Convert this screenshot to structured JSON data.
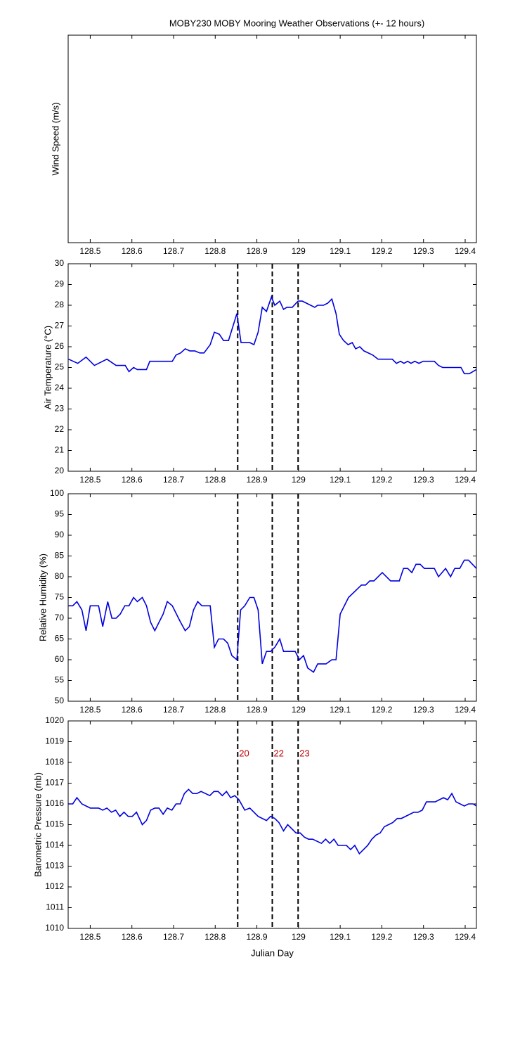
{
  "chart_data": [
    {
      "type": "line",
      "title": "MOBY230 MOBY Mooring Weather Observations (+- 12 hours)",
      "ylabel": "Wind Speed (m/s)",
      "xlim": [
        128.447,
        129.427
      ],
      "xticks": [
        128.5,
        128.6,
        128.7,
        128.8,
        128.9,
        129,
        129.1,
        129.2,
        129.3,
        129.4
      ]
    },
    {
      "type": "line",
      "ylabel": "Air Temperature (°C)",
      "color": "#0000e0",
      "xlim": [
        128.447,
        129.427
      ],
      "xticks": [
        128.5,
        128.6,
        128.7,
        128.8,
        128.9,
        129,
        129.1,
        129.2,
        129.3,
        129.4
      ],
      "ylim": [
        20,
        30
      ],
      "yticks": [
        20,
        21,
        22,
        23,
        24,
        25,
        26,
        27,
        28,
        29,
        30
      ],
      "vlines": [
        128.854,
        128.937,
        128.999
      ],
      "x": [
        128.448,
        128.47,
        128.49,
        128.51,
        128.54,
        128.562,
        128.584,
        128.593,
        128.604,
        128.613,
        128.635,
        128.643,
        128.697,
        128.706,
        128.717,
        128.728,
        128.739,
        128.751,
        128.763,
        128.773,
        128.788,
        128.798,
        128.81,
        128.82,
        128.832,
        128.852,
        128.862,
        128.883,
        128.893,
        128.903,
        128.913,
        128.923,
        128.935,
        128.943,
        128.955,
        128.964,
        128.972,
        128.985,
        128.999,
        129.009,
        129.039,
        129.046,
        129.06,
        129.07,
        129.08,
        129.09,
        129.098,
        129.108,
        129.119,
        129.129,
        129.137,
        129.147,
        129.157,
        129.178,
        129.191,
        129.225,
        129.235,
        129.245,
        129.253,
        129.262,
        129.27,
        129.279,
        129.289,
        129.299,
        129.326,
        129.336,
        129.346,
        129.39,
        129.398,
        129.41,
        129.427
      ],
      "values": [
        25.4,
        25.2,
        25.5,
        25.1,
        25.4,
        25.1,
        25.1,
        24.8,
        25.0,
        24.9,
        24.9,
        25.3,
        25.3,
        25.6,
        25.7,
        25.9,
        25.8,
        25.8,
        25.7,
        25.7,
        26.1,
        26.7,
        26.6,
        26.3,
        26.3,
        27.6,
        26.2,
        26.2,
        26.1,
        26.7,
        27.9,
        27.7,
        28.4,
        28.0,
        28.2,
        27.8,
        27.9,
        27.9,
        28.2,
        28.2,
        27.9,
        28.0,
        28.0,
        28.1,
        28.3,
        27.6,
        26.6,
        26.3,
        26.1,
        26.2,
        25.9,
        26.0,
        25.8,
        25.6,
        25.4,
        25.4,
        25.2,
        25.3,
        25.2,
        25.3,
        25.2,
        25.3,
        25.2,
        25.3,
        25.3,
        25.1,
        25.0,
        25.0,
        24.7,
        24.7,
        24.9
      ]
    },
    {
      "type": "line",
      "ylabel": "Relative Humidity (%)",
      "color": "#0000e0",
      "xlim": [
        128.447,
        129.427
      ],
      "xticks": [
        128.5,
        128.6,
        128.7,
        128.8,
        128.9,
        129,
        129.1,
        129.2,
        129.3,
        129.4
      ],
      "ylim": [
        50,
        100
      ],
      "yticks": [
        50,
        55,
        60,
        65,
        70,
        75,
        80,
        85,
        90,
        95,
        100
      ],
      "vlines": [
        128.854,
        128.937,
        128.999
      ],
      "x": [
        128.448,
        128.458,
        128.468,
        128.48,
        128.49,
        128.5,
        128.52,
        128.53,
        128.542,
        128.552,
        128.562,
        128.572,
        128.583,
        128.593,
        128.604,
        128.613,
        128.625,
        128.635,
        128.645,
        128.655,
        128.665,
        128.675,
        128.685,
        128.697,
        128.707,
        128.717,
        128.728,
        128.738,
        128.748,
        128.758,
        128.768,
        128.788,
        128.798,
        128.808,
        128.82,
        128.83,
        128.84,
        128.852,
        128.861,
        128.871,
        128.883,
        128.893,
        128.903,
        128.913,
        128.923,
        128.933,
        128.943,
        128.955,
        128.964,
        128.992,
        129.002,
        129.012,
        129.022,
        129.036,
        129.046,
        129.066,
        129.08,
        129.09,
        129.1,
        129.12,
        129.151,
        129.161,
        129.171,
        129.181,
        129.201,
        129.221,
        129.242,
        129.252,
        129.262,
        129.272,
        129.282,
        129.292,
        129.302,
        129.326,
        129.336,
        129.353,
        129.365,
        129.375,
        129.387,
        129.398,
        129.408,
        129.427
      ],
      "values": [
        73,
        73,
        74,
        72,
        67,
        73,
        73,
        68,
        74,
        70,
        70,
        71,
        73,
        73,
        75,
        74,
        75,
        73,
        69,
        67,
        69,
        71,
        74,
        73,
        71,
        69,
        67,
        68,
        72,
        74,
        73,
        73,
        63,
        65,
        65,
        64,
        61,
        60,
        72,
        73,
        75,
        75,
        72,
        59,
        62,
        62,
        63,
        65,
        62,
        62,
        60,
        61,
        58,
        57,
        59,
        59,
        60,
        60,
        71,
        75,
        78,
        78,
        79,
        79,
        81,
        79,
        79,
        82,
        82,
        81,
        83,
        83,
        82,
        82,
        80,
        82,
        80,
        82,
        82,
        84,
        84,
        82
      ]
    },
    {
      "type": "line",
      "ylabel": "Barometric Pressure (mb)",
      "xlabel": "Julian Day",
      "color": "#0000e0",
      "xlim": [
        128.447,
        129.427
      ],
      "xticks": [
        128.5,
        128.6,
        128.7,
        128.8,
        128.9,
        129,
        129.1,
        129.2,
        129.3,
        129.4
      ],
      "ylim": [
        1010,
        1020
      ],
      "yticks": [
        1010,
        1011,
        1012,
        1013,
        1014,
        1015,
        1016,
        1017,
        1018,
        1019,
        1020
      ],
      "vlines": [
        {
          "x": 128.854,
          "label": "20"
        },
        {
          "x": 128.937,
          "label": "22"
        },
        {
          "x": 128.999,
          "label": "23"
        }
      ],
      "vline_label_y": 1018.4,
      "vline_label_color": "#c00000",
      "x": [
        128.448,
        128.458,
        128.468,
        128.48,
        128.5,
        128.52,
        128.53,
        128.54,
        128.551,
        128.561,
        128.571,
        128.581,
        128.591,
        128.601,
        128.611,
        128.625,
        128.635,
        128.645,
        128.655,
        128.665,
        128.675,
        128.685,
        128.696,
        128.706,
        128.716,
        128.726,
        128.736,
        128.746,
        128.756,
        128.766,
        128.787,
        128.797,
        128.807,
        128.817,
        128.827,
        128.837,
        128.847,
        128.857,
        128.871,
        128.883,
        128.903,
        128.923,
        128.933,
        128.943,
        128.953,
        128.964,
        128.974,
        128.994,
        129.004,
        129.014,
        129.024,
        129.034,
        129.055,
        129.065,
        129.075,
        129.085,
        129.095,
        129.115,
        129.125,
        129.135,
        129.146,
        129.166,
        129.176,
        129.186,
        129.196,
        129.206,
        129.216,
        129.226,
        129.237,
        129.247,
        129.267,
        129.277,
        129.287,
        129.297,
        129.307,
        129.328,
        129.338,
        129.348,
        129.358,
        129.368,
        129.378,
        129.398,
        129.408,
        129.419,
        129.427
      ],
      "values": [
        1016.0,
        1016.0,
        1016.3,
        1016.0,
        1015.8,
        1015.8,
        1015.7,
        1015.8,
        1015.6,
        1015.7,
        1015.4,
        1015.6,
        1015.4,
        1015.4,
        1015.6,
        1015.0,
        1015.2,
        1015.7,
        1015.8,
        1015.8,
        1015.5,
        1015.8,
        1015.7,
        1016.0,
        1016.0,
        1016.5,
        1016.7,
        1016.5,
        1016.5,
        1016.6,
        1016.4,
        1016.6,
        1016.6,
        1016.4,
        1016.6,
        1016.3,
        1016.4,
        1016.2,
        1015.7,
        1015.8,
        1015.4,
        1015.2,
        1015.4,
        1015.3,
        1015.1,
        1014.7,
        1015.0,
        1014.6,
        1014.6,
        1014.4,
        1014.3,
        1014.3,
        1014.1,
        1014.3,
        1014.1,
        1014.3,
        1014.0,
        1014.0,
        1013.8,
        1014.0,
        1013.6,
        1014.0,
        1014.3,
        1014.5,
        1014.6,
        1014.9,
        1015.0,
        1015.1,
        1015.3,
        1015.3,
        1015.5,
        1015.6,
        1015.6,
        1015.7,
        1016.1,
        1016.1,
        1016.2,
        1016.3,
        1016.2,
        1016.5,
        1016.1,
        1015.9,
        1016.0,
        1016.0,
        1015.9
      ]
    }
  ]
}
